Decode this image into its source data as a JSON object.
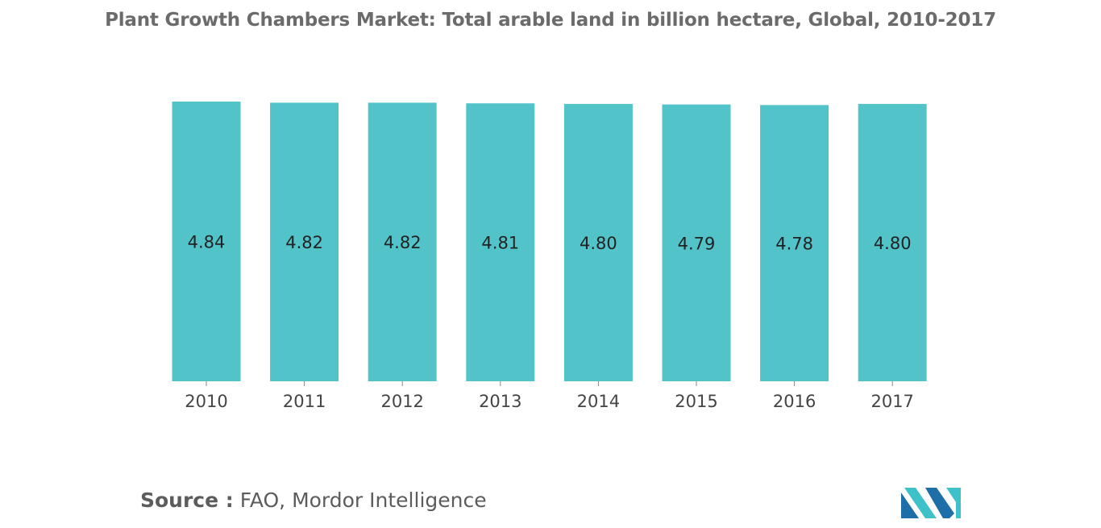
{
  "chart_data": {
    "type": "bar",
    "title": "Plant Growth Chambers Market: Total arable land in billion hectare, Global, 2010-2017",
    "categories": [
      "2010",
      "2011",
      "2012",
      "2013",
      "2014",
      "2015",
      "2016",
      "2017"
    ],
    "values": [
      4.84,
      4.82,
      4.82,
      4.81,
      4.8,
      4.79,
      4.78,
      4.8
    ],
    "value_labels": [
      "4.84",
      "4.82",
      "4.82",
      "4.81",
      "4.80",
      "4.79",
      "4.78",
      "4.80"
    ],
    "xlabel": "",
    "ylabel": "",
    "ylim": [
      0,
      4.84
    ],
    "grid": false,
    "legend": "none",
    "bar_color": "#52c3c9"
  },
  "footer": {
    "source_prefix": "Source :",
    "source_text": " FAO, Mordor Intelligence"
  },
  "logo": {
    "name": "mordor-intelligence-logo",
    "colors": [
      "#1e6fa8",
      "#3ec1c9"
    ]
  }
}
